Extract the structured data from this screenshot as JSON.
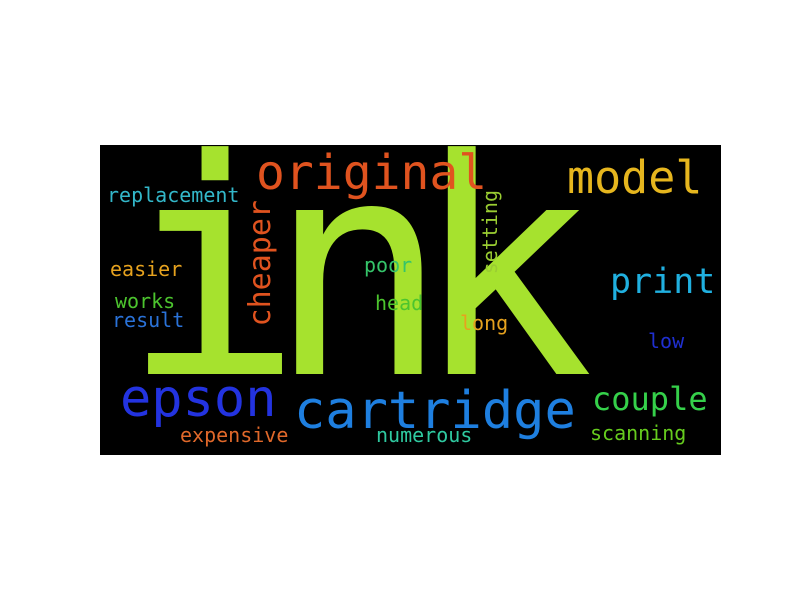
{
  "words": [
    {
      "text": "ink",
      "color": "#a6e22e",
      "name": "word-ink"
    },
    {
      "text": "original",
      "color": "#e0531f",
      "name": "word-original"
    },
    {
      "text": "model",
      "color": "#e6b61e",
      "name": "word-model"
    },
    {
      "text": "replacement",
      "color": "#33b7c9",
      "name": "word-replacement"
    },
    {
      "text": "cheaper",
      "color": "#e0531f",
      "name": "word-cheaper"
    },
    {
      "text": "setting",
      "color": "#9acd32",
      "name": "word-setting"
    },
    {
      "text": "print",
      "color": "#20b0e0",
      "name": "word-print"
    },
    {
      "text": "easier",
      "color": "#e6a21e",
      "name": "word-easier"
    },
    {
      "text": "poor",
      "color": "#35c46a",
      "name": "word-poor"
    },
    {
      "text": "works",
      "color": "#4cc42e",
      "name": "word-works"
    },
    {
      "text": "head",
      "color": "#4cc42e",
      "name": "word-head"
    },
    {
      "text": "result",
      "color": "#2a72d8",
      "name": "word-result"
    },
    {
      "text": "long",
      "color": "#e6a21e",
      "name": "word-long"
    },
    {
      "text": "low",
      "color": "#1f2fd0",
      "name": "word-low"
    },
    {
      "text": "epson",
      "color": "#2333e0",
      "name": "word-epson"
    },
    {
      "text": "cartridge",
      "color": "#1e7fe0",
      "name": "word-cartridge"
    },
    {
      "text": "couple",
      "color": "#35d04a",
      "name": "word-couple"
    },
    {
      "text": "expensive",
      "color": "#e0682a",
      "name": "word-expensive"
    },
    {
      "text": "numerous",
      "color": "#2fc9a0",
      "name": "word-numerous"
    },
    {
      "text": "scanning",
      "color": "#66cc1e",
      "name": "word-scanning"
    }
  ]
}
